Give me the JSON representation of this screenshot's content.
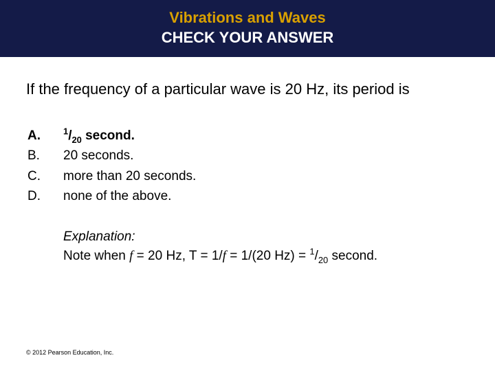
{
  "header": {
    "title": "Vibrations and Waves",
    "subtitle": "CHECK YOUR ANSWER",
    "title_color": "#d9a000",
    "subtitle_color": "#ffffff",
    "background": "#141b48"
  },
  "question": "If the frequency of a particular wave is 20 Hz, its period is",
  "choices": [
    {
      "letter": "A.",
      "text_html": "<span class='sup'>1</span>/<span class='sub'>20</span> second.",
      "correct": true
    },
    {
      "letter": "B.",
      "text_html": "20 seconds.",
      "correct": false
    },
    {
      "letter": "C.",
      "text_html": "more than 20 seconds.",
      "correct": false
    },
    {
      "letter": "D.",
      "text_html": "none of the above.",
      "correct": false
    }
  ],
  "explanation": {
    "title": "Explanation:",
    "body_html": "Note when <span class='f-italic'>f</span> = 20 Hz, T = 1/<span class='f-italic'>f</span> = 1/(20 Hz) = <span class='sup'>1</span>/<span class='sub'>20</span> second."
  },
  "copyright": "© 2012 Pearson Education, Inc."
}
